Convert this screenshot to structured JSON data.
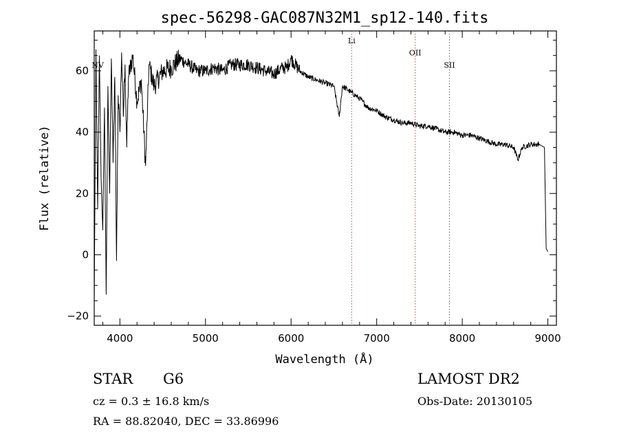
{
  "chart_data": {
    "type": "line",
    "title": "spec-56298-GAC087N32M1_sp12-140.fits",
    "xlabel": "Wavelength (Å)",
    "ylabel": "Flux (relative)",
    "xlim": [
      3700,
      9100
    ],
    "ylim": [
      -23,
      73
    ],
    "x_ticks": [
      4000,
      5000,
      6000,
      7000,
      8000,
      9000
    ],
    "y_ticks": [
      -20,
      0,
      20,
      40,
      60
    ],
    "grid": false,
    "series": [
      {
        "x": [
          3700,
          3720,
          3740,
          3760,
          3780,
          3800,
          3820,
          3840,
          3860,
          3880,
          3900,
          3920,
          3940,
          3960,
          3980,
          4000,
          4020,
          4040,
          4060,
          4080,
          4100,
          4150,
          4200,
          4250,
          4300,
          4340,
          4400,
          4500,
          4600,
          4700,
          4800,
          4900,
          5000,
          5100,
          5200,
          5300,
          5400,
          5500,
          5600,
          5700,
          5800,
          5900,
          5950,
          6000,
          6100,
          6200,
          6300,
          6400,
          6500,
          6563,
          6600,
          6700,
          6800,
          6900,
          7000,
          7100,
          7200,
          7300,
          7400,
          7500,
          7600,
          7700,
          7800,
          7900,
          8000,
          8100,
          8200,
          8300,
          8400,
          8500,
          8600,
          8650,
          8700,
          8800,
          8900,
          8960,
          8980,
          9000
        ],
        "y": [
          -15,
          67,
          15,
          65,
          25,
          8,
          48,
          -13,
          55,
          20,
          64,
          30,
          58,
          -2,
          52,
          40,
          66,
          45,
          62,
          35,
          58,
          65,
          50,
          57,
          29,
          62,
          55,
          60,
          61,
          64,
          62,
          60,
          60,
          61,
          60,
          62,
          62,
          62,
          61,
          60,
          59,
          61,
          61,
          64,
          60,
          58,
          57,
          56,
          55,
          45,
          55,
          53,
          51,
          48,
          47,
          45,
          44,
          43,
          43,
          42,
          42,
          41,
          40,
          40,
          39,
          39,
          38,
          37,
          36,
          36,
          35,
          31,
          35,
          36,
          36,
          35,
          2,
          1
        ]
      }
    ],
    "annotations": [
      {
        "label": "NV",
        "x": 3740,
        "y": 61,
        "line": false
      },
      {
        "label": "Li",
        "x": 6708,
        "y": 69,
        "line": true
      },
      {
        "label": "OII",
        "x": 7450,
        "y": 65,
        "line": true
      },
      {
        "label": "SII",
        "x": 7850,
        "y": 61,
        "line": true
      }
    ]
  },
  "footer": {
    "object_class": "STAR",
    "subclass": "G6",
    "survey": "LAMOST DR2",
    "cz": "cz =  0.3 ± 16.8 km/s",
    "obs_date": "Obs-Date: 20130105",
    "coords": "RA =  88.82040, DEC =  33.86996"
  }
}
